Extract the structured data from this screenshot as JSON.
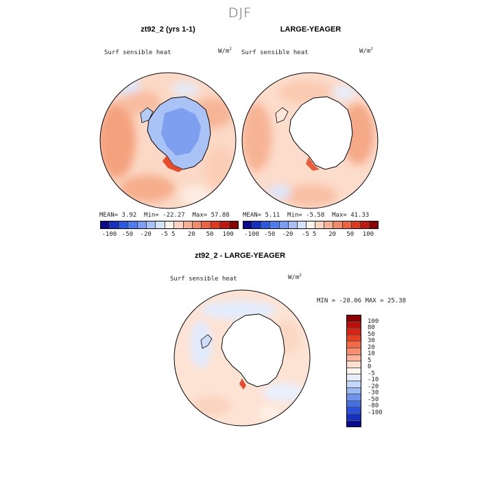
{
  "title": "DJF",
  "panels": [
    {
      "title": "zt92_2 (yrs 1-1)",
      "variable": "Surf  sensible  heat",
      "units": "W/m",
      "units_sup": "2",
      "stats": {
        "mean_label": "MEAN=",
        "mean": "3.92",
        "min_label": "Min=",
        "min": "-22.27",
        "max_label": "Max=",
        "max": "57.88"
      }
    },
    {
      "title": "LARGE-YEAGER",
      "variable": "Surf  sensible  heat",
      "units": "W/m",
      "units_sup": "2",
      "stats": {
        "mean_label": "MEAN=",
        "mean": "5.11",
        "min_label": "Min=",
        "min": "-5.58",
        "max_label": "Max=",
        "max": "41.33"
      }
    },
    {
      "title": "zt92_2 - LARGE-YEAGER",
      "variable": "Surf  sensible  heat",
      "units": "W/m",
      "units_sup": "2",
      "minmax": "MIN = -28.06  MAX =  25.38"
    }
  ],
  "colorbar_top": {
    "labels": [
      "-100",
      "-50",
      "-20",
      "-5",
      "5",
      "20",
      "50",
      "100"
    ],
    "colors": [
      "#0a0a8c",
      "#1530c0",
      "#2a5ae0",
      "#4d7bf0",
      "#7a9ef5",
      "#a8c2f8",
      "#d4e2fb",
      "#fdf2ea",
      "#fbd3bf",
      "#f8b094",
      "#f28a66",
      "#ec6140",
      "#e03a1e",
      "#c01810",
      "#8c0000"
    ]
  },
  "colorbar_diff": {
    "labels": [
      "100",
      "80",
      "50",
      "30",
      "20",
      "10",
      "5",
      "0",
      "-5",
      "-10",
      "-20",
      "-30",
      "-50",
      "-80",
      "-100"
    ],
    "colors": [
      "#8c0000",
      "#b80f0a",
      "#d82414",
      "#ec3e1c",
      "#f36a44",
      "#f89070",
      "#fbb399",
      "#fde0cf",
      "#fdf5ee",
      "#e6eefc",
      "#c3d5f8",
      "#9ab8f3",
      "#6e94ee",
      "#4470e6",
      "#2a4fd8",
      "#1530c0",
      "#0a0a8c"
    ]
  }
}
